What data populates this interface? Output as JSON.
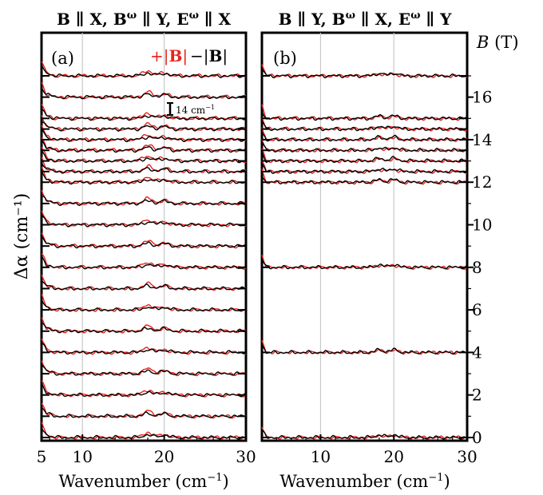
{
  "chart_data": [
    {
      "type": "line",
      "panel_label": "(a)",
      "title": "B ∥ X, B^ω ∥ Y, E^ω ∥ X",
      "xlabel": "Wavenumber (cm⁻¹)",
      "ylabel": "Δα (cm⁻¹)",
      "xlim": [
        5,
        30
      ],
      "ylim": [
        -0.1,
        17.6
      ],
      "xticks": [
        "5",
        "10",
        "20",
        "30"
      ],
      "legend": {
        "plus": "+|B|",
        "minus": "−|B|",
        "placement": "top-right"
      },
      "scale_bar": "14 cm⁻¹",
      "vertical_gridlines": [
        10,
        20
      ],
      "offsets_T": [
        0,
        1,
        2,
        3,
        4,
        5,
        6,
        7,
        8,
        9,
        10,
        11,
        12,
        12.5,
        13,
        13.5,
        14,
        14.5,
        15,
        16,
        17
      ],
      "series": [
        {
          "name": "+|B|",
          "color": "#e8231d",
          "peaks": [
            {
              "x": 5.5,
              "h": 0.22
            },
            {
              "x": 18.0,
              "h": 0.38
            },
            {
              "x": 20.0,
              "h": 0.22
            }
          ]
        },
        {
          "name": "−|B|",
          "color": "#000000",
          "peaks": [
            {
              "x": 5.5,
              "h": 0.2
            },
            {
              "x": 18.0,
              "h": 0.2
            },
            {
              "x": 20.0,
              "h": 0.18
            }
          ]
        }
      ]
    },
    {
      "type": "line",
      "panel_label": "(b)",
      "title": "B ∥ Y, B^ω ∥ X, E^ω ∥ Y",
      "xlabel": "Wavenumber (cm⁻¹)",
      "ylabel": "B (T)",
      "xlim": [
        2,
        30
      ],
      "ylim": [
        -0.1,
        17.6
      ],
      "xticks": [
        "10",
        "20",
        "30"
      ],
      "yticks": [
        "0",
        "2",
        "4",
        "6",
        "8",
        "10",
        "12",
        "14",
        "16"
      ],
      "vertical_gridlines": [
        10,
        20
      ],
      "offsets_T": [
        0,
        4,
        8,
        12,
        12.5,
        13,
        13.5,
        14,
        14.5,
        15,
        17
      ],
      "series": [
        {
          "name": "+|B|",
          "color": "#e8231d",
          "peaks": [
            {
              "x": 18.0,
              "h": 0.15
            },
            {
              "x": 20.0,
              "h": 0.15
            }
          ]
        },
        {
          "name": "−|B|",
          "color": "#000000",
          "peaks": [
            {
              "x": 18.0,
              "h": 0.18
            },
            {
              "x": 20.0,
              "h": 0.2
            }
          ]
        }
      ]
    }
  ]
}
